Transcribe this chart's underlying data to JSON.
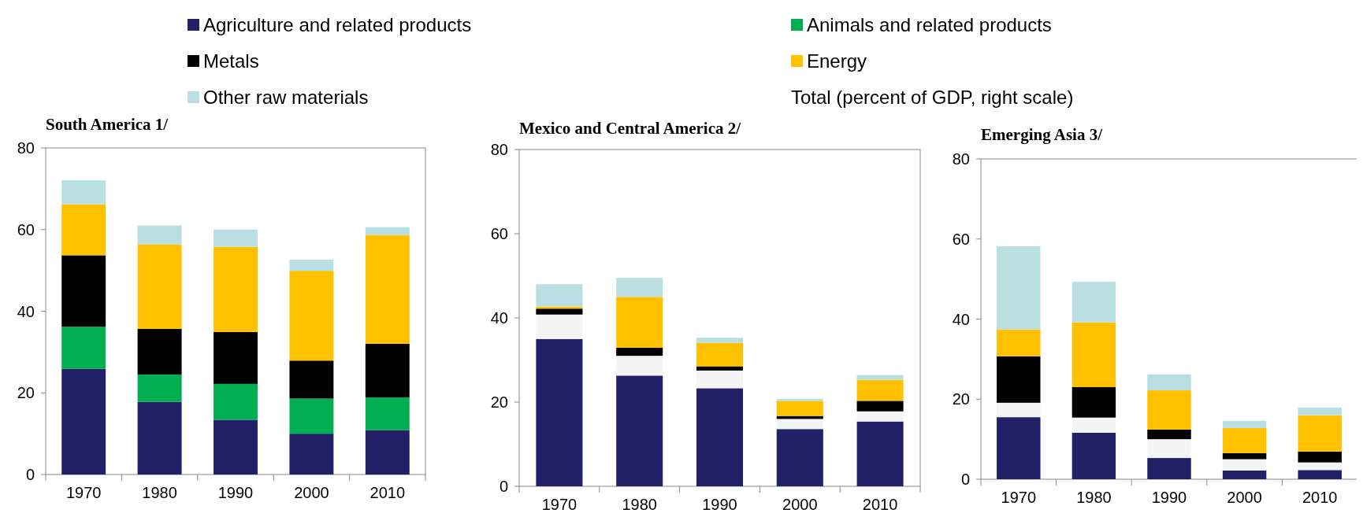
{
  "chart_data": [
    {
      "type": "bar",
      "stacked": true,
      "title": "South America 1/",
      "categories": [
        "1970",
        "1980",
        "1990",
        "2000",
        "2010"
      ],
      "ylim": [
        0,
        80
      ],
      "yticks": [
        0,
        20,
        40,
        60,
        80
      ],
      "legend": "top",
      "annotations": [
        "Total (percent of GDP, right scale)"
      ],
      "series": [
        {
          "name": "Agriculture and related products",
          "color": "#222066",
          "values": [
            25.9,
            17.8,
            13.4,
            10.0,
            10.9
          ]
        },
        {
          "name": "Animals and related products",
          "color": "#00ad50",
          "values": [
            10.3,
            6.7,
            8.8,
            8.6,
            8.0
          ]
        },
        {
          "name": "Metals",
          "color": "#000000",
          "values": [
            17.5,
            11.2,
            12.7,
            9.3,
            13.1
          ]
        },
        {
          "name": "Energy",
          "color": "#ffc000",
          "values": [
            12.5,
            20.7,
            20.9,
            22.0,
            26.7
          ]
        },
        {
          "name": "Other raw materials",
          "color": "#b9dfe2",
          "values": [
            5.9,
            4.6,
            4.2,
            2.7,
            1.9
          ]
        }
      ]
    },
    {
      "type": "bar",
      "stacked": true,
      "title": "Mexico and Central America 2/",
      "categories": [
        "1970",
        "1980",
        "1990",
        "2000",
        "2010"
      ],
      "ylim": [
        0,
        80
      ],
      "yticks": [
        0,
        20,
        40,
        60,
        80
      ],
      "series": [
        {
          "color": "#222066",
          "values": [
            35.0,
            26.3,
            23.3,
            13.6,
            15.4
          ]
        },
        {
          "color": "#f4f4f4",
          "values": [
            5.8,
            4.7,
            4.2,
            2.4,
            2.4
          ]
        },
        {
          "color": "#000000",
          "values": [
            1.4,
            1.9,
            1.0,
            0.7,
            2.5
          ]
        },
        {
          "color": "#ffc000",
          "values": [
            0.5,
            12.1,
            5.6,
            3.6,
            5.0
          ]
        },
        {
          "color": "#b9dfe2",
          "values": [
            5.3,
            4.5,
            1.2,
            0.5,
            1.1
          ]
        }
      ]
    },
    {
      "type": "bar",
      "stacked": true,
      "title": "Emerging Asia 3/",
      "categories": [
        "1970",
        "1980",
        "1990",
        "2000",
        "2010"
      ],
      "ylim": [
        0,
        80
      ],
      "yticks": [
        0,
        20,
        40,
        60,
        80
      ],
      "series": [
        {
          "color": "#222066",
          "values": [
            15.5,
            11.6,
            5.3,
            2.2,
            2.3
          ]
        },
        {
          "color": "#f4f4f4",
          "values": [
            3.6,
            3.8,
            4.7,
            2.8,
            1.9
          ]
        },
        {
          "color": "#000000",
          "values": [
            11.6,
            7.6,
            2.4,
            1.5,
            2.7
          ]
        },
        {
          "color": "#ffc000",
          "values": [
            6.7,
            16.2,
            9.8,
            6.3,
            9.1
          ]
        },
        {
          "color": "#b9dfe2",
          "values": [
            20.8,
            10.1,
            4.0,
            1.8,
            1.9
          ]
        }
      ]
    }
  ]
}
